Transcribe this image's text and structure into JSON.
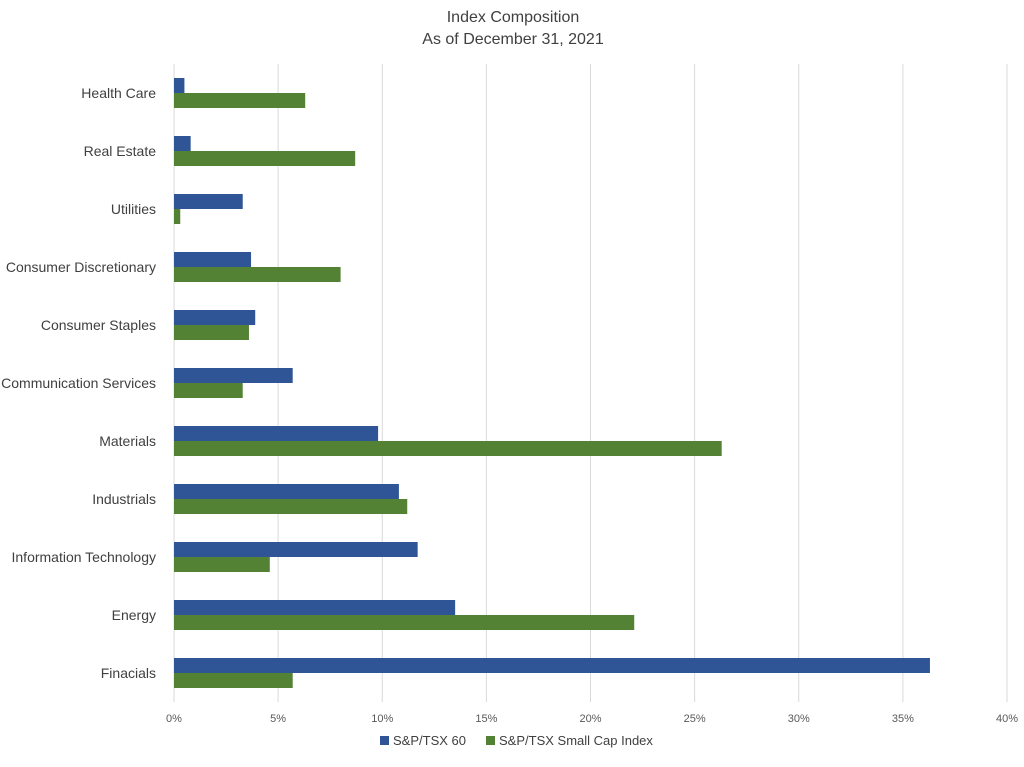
{
  "chart_data": {
    "type": "bar",
    "orientation": "horizontal",
    "title": "Index Composition",
    "subtitle": "As of December 31, 2021",
    "categories": [
      "Health Care",
      "Real Estate",
      "Utilities",
      "Consumer Discretionary",
      "Consumer Staples",
      "Communication Services",
      "Materials",
      "Industrials",
      "Information Technology",
      "Energy",
      "Finacials"
    ],
    "series": [
      {
        "name": "S&P/TSX 60",
        "color": "#2f5597",
        "values": [
          0.5,
          0.8,
          3.3,
          3.7,
          3.9,
          5.7,
          9.8,
          10.8,
          11.7,
          13.5,
          36.3
        ]
      },
      {
        "name": "S&P/TSX Small Cap Index",
        "color": "#548235",
        "values": [
          6.3,
          8.7,
          0.3,
          8.0,
          3.6,
          3.3,
          26.3,
          11.2,
          4.6,
          22.1,
          5.7
        ]
      }
    ],
    "xlim": [
      0,
      40
    ],
    "xticks": [
      "0%",
      "5%",
      "10%",
      "15%",
      "20%",
      "25%",
      "30%",
      "35%",
      "40%"
    ],
    "xlabel": "",
    "ylabel": "",
    "grid": "vertical",
    "legend_position": "bottom"
  }
}
